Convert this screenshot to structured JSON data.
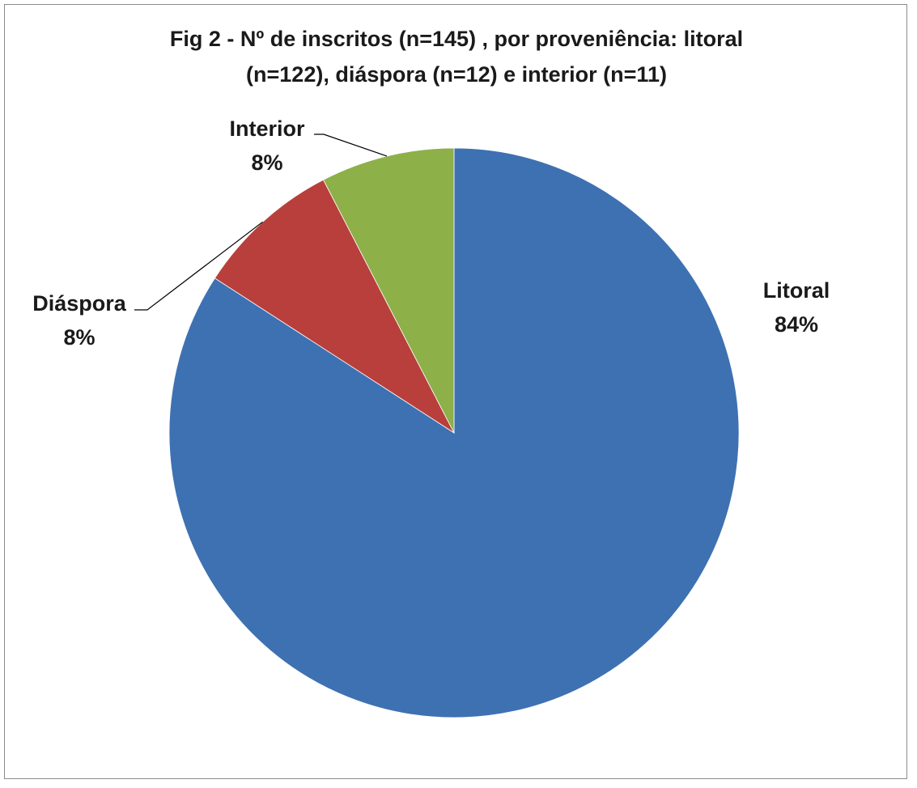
{
  "chart_data": {
    "type": "pie",
    "title_line1": "Fig 2 - Nº de inscritos (n=145) , por proveniência: litoral",
    "title_line2": "(n=122), diáspora (n=12) e interior (n=11)",
    "slices": [
      {
        "label": "Litoral",
        "percent_label": "84%",
        "value": 122,
        "color": "#3E71B2"
      },
      {
        "label": "Diáspora",
        "percent_label": "8%",
        "value": 12,
        "color": "#B83F3B"
      },
      {
        "label": "Interior",
        "percent_label": "8%",
        "value": 11,
        "color": "#8DB049"
      }
    ],
    "start_angle_deg": 0,
    "direction": "clockwise",
    "legend": "none"
  }
}
